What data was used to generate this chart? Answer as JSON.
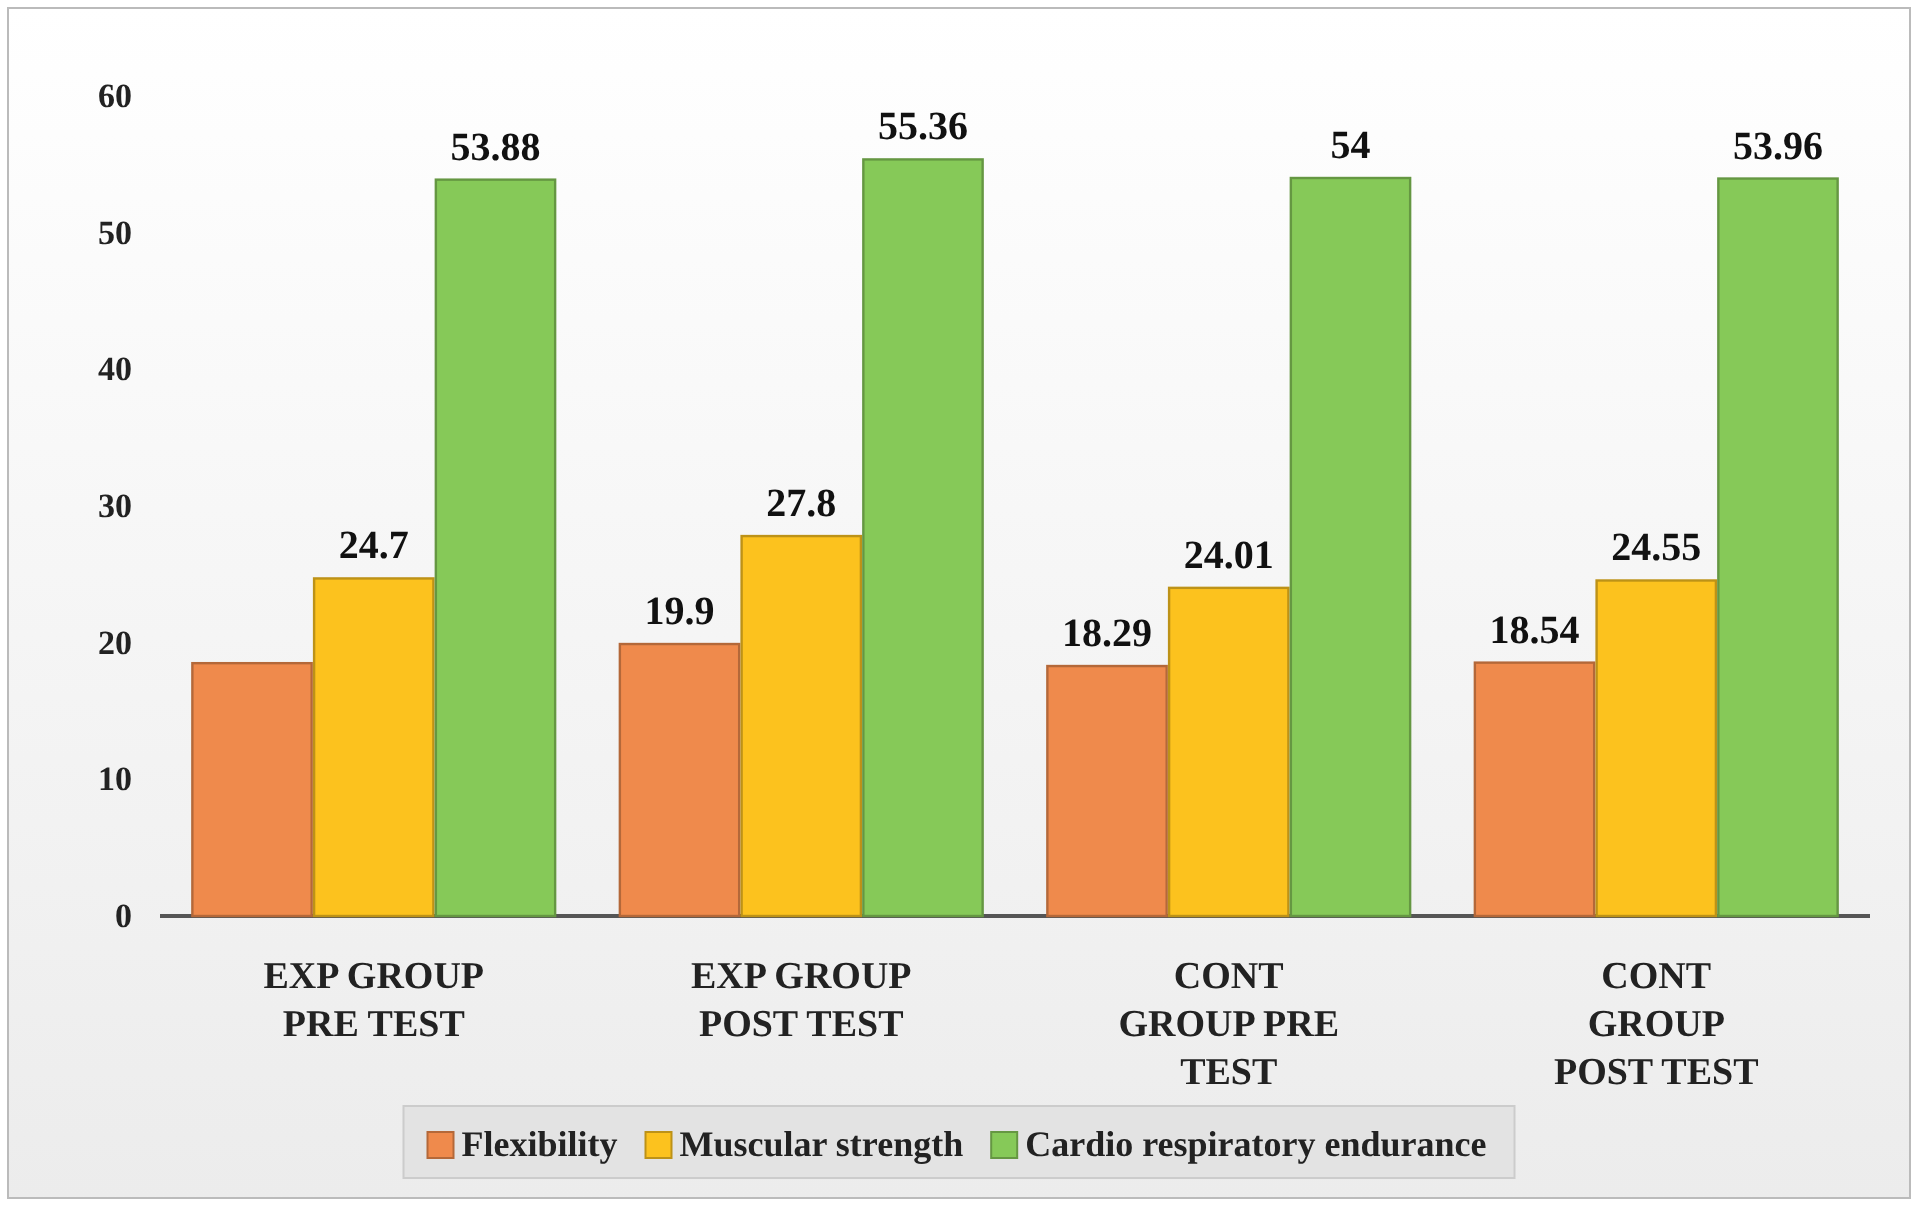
{
  "chart_data": {
    "type": "bar",
    "categories": [
      "EXP GROUP PRE TEST",
      "EXP GROUP POST TEST",
      "CONT GROUP PRE TEST",
      "CONT GROUP POST TEST"
    ],
    "series": [
      {
        "name": "Flexibility",
        "color": "#ef8a4c",
        "values": [
          18.5,
          19.9,
          18.29,
          18.54
        ],
        "value_labels": [
          null,
          "19.9",
          "18.29",
          "18.54"
        ]
      },
      {
        "name": "Muscular strength",
        "color": "#fcc21e",
        "values": [
          24.7,
          27.8,
          24.01,
          24.55
        ],
        "value_labels": [
          "24.7",
          "27.8",
          "24.01",
          "24.55"
        ]
      },
      {
        "name": "Cardio respiratory endurance",
        "color": "#86c958",
        "values": [
          53.88,
          55.36,
          54,
          53.96
        ],
        "value_labels": [
          "53.88",
          "55.36",
          "54",
          "53.96"
        ]
      }
    ],
    "ylim": [
      0,
      60
    ],
    "yticks": [
      0,
      10,
      20,
      30,
      40,
      50,
      60
    ],
    "grid": false,
    "legend": "bottom"
  }
}
